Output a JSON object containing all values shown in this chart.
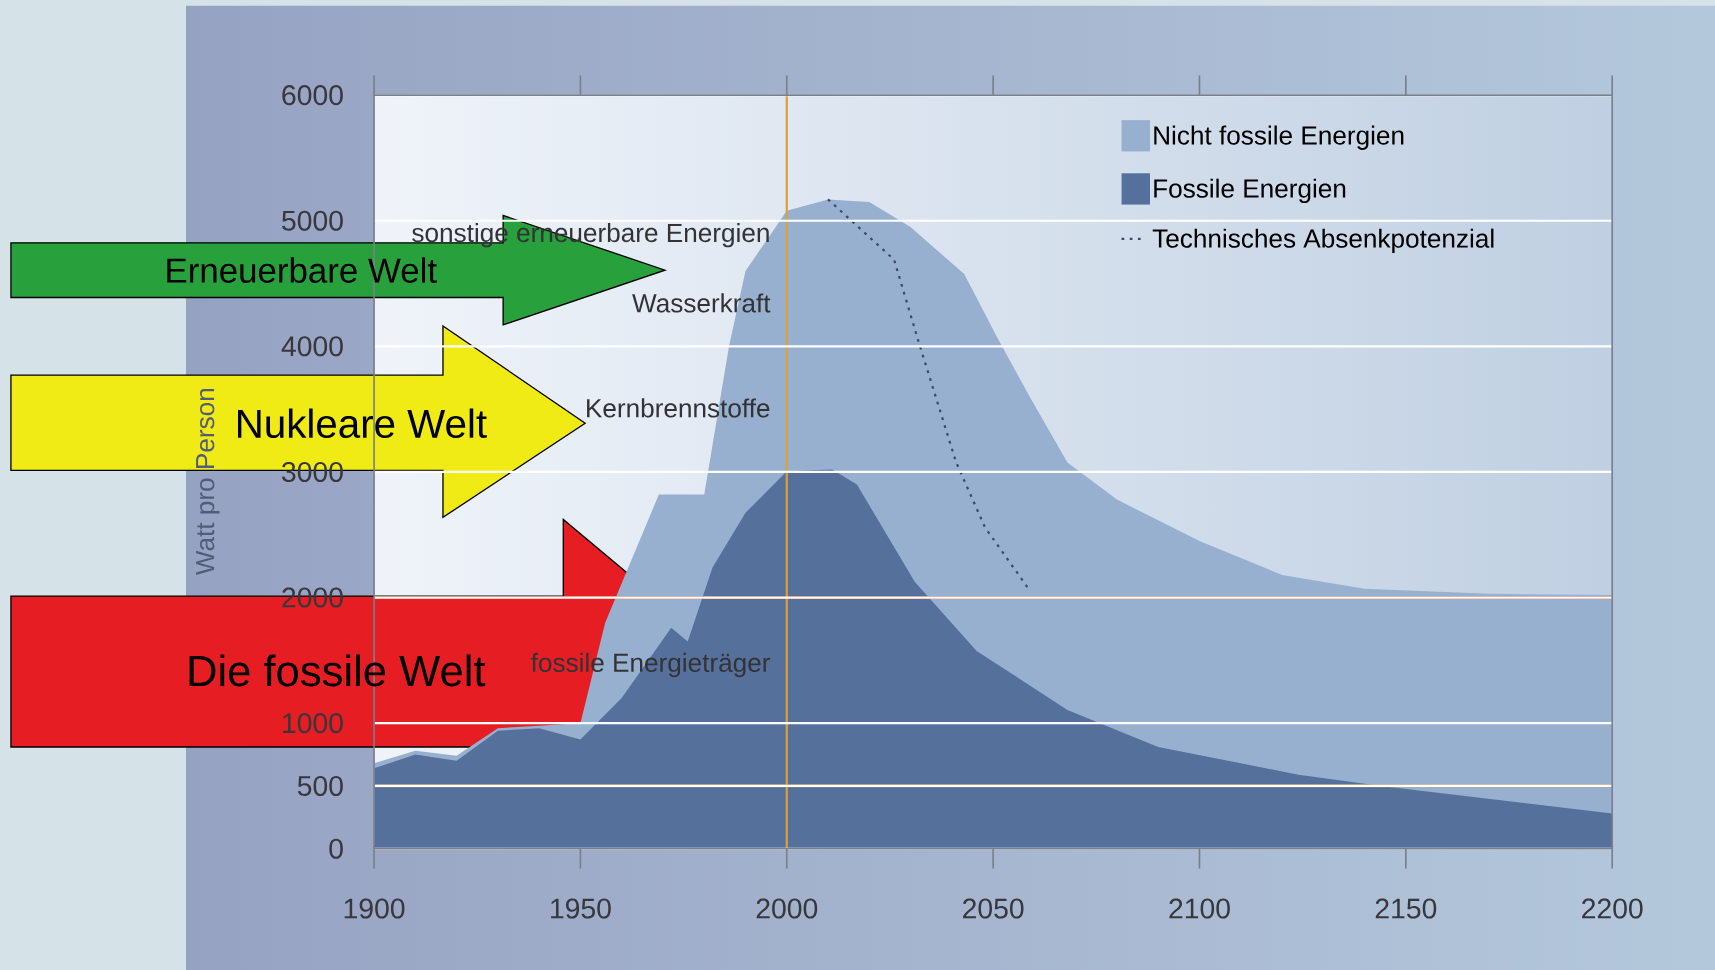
{
  "chart_data": {
    "type": "area",
    "ylabel": "Watt pro Person",
    "xlim": [
      1900,
      2200
    ],
    "ylim": [
      0,
      6000
    ],
    "xticks": [
      1900,
      1950,
      2000,
      2050,
      2100,
      2150,
      2200
    ],
    "yticks": [
      0,
      500,
      1000,
      2000,
      3000,
      4000,
      5000,
      6000
    ],
    "grid": "y",
    "legend": "top right",
    "series": [
      {
        "name": "Nicht fossile Energien",
        "color": "#98b0cf",
        "x": [
          1900,
          1910,
          1920,
          1930,
          1940,
          1950,
          1956,
          1969,
          1980,
          1986,
          1990,
          2000,
          2010,
          2020,
          2030,
          2043,
          2051,
          2059,
          2068,
          2080,
          2100,
          2120,
          2140,
          2170,
          2200
        ],
        "values": [
          680,
          780,
          740,
          960,
          980,
          1000,
          1800,
          2820,
          2820,
          4000,
          4600,
          5080,
          5170,
          5150,
          4950,
          4575,
          4070,
          3590,
          3075,
          2780,
          2450,
          2180,
          2070,
          2030,
          2020
        ]
      },
      {
        "name": "Fossile Energien",
        "color": "#56709c",
        "x": [
          1900,
          1910,
          1920,
          1930,
          1940,
          1950,
          1960,
          1972,
          1976,
          1982,
          1990,
          2000,
          2011,
          2017,
          2031,
          2046,
          2068,
          2090,
          2124,
          2145,
          2200
        ],
        "values": [
          640,
          750,
          700,
          940,
          960,
          870,
          1200,
          1760,
          1650,
          2240,
          2675,
          3005,
          3020,
          2900,
          2125,
          1575,
          1105,
          810,
          590,
          495,
          280
        ]
      },
      {
        "name": "Technisches Absenkpotenzial",
        "type": "line",
        "line_style": "dotted",
        "color": "#3a4a66",
        "x": [
          2010,
          2026,
          2032,
          2041,
          2048,
          2059
        ],
        "values": [
          5170,
          4690,
          4030,
          3080,
          2560,
          2050
        ]
      }
    ],
    "ref_lines": [
      {
        "axis": "y",
        "value": 2000,
        "color": "#d9471c"
      },
      {
        "axis": "y",
        "value": 500,
        "color": "#c9a24a"
      },
      {
        "axis": "x",
        "value": 2000,
        "color": "#d9a040"
      }
    ],
    "annotations": [
      "sonstige erneuerbare Energien",
      "Wasserkraft",
      "Kernbrennstoffe",
      "fossile Energieträger",
      "Erneuerbare Welt",
      "Nukleare Welt",
      "Die fossile Welt"
    ]
  }
}
